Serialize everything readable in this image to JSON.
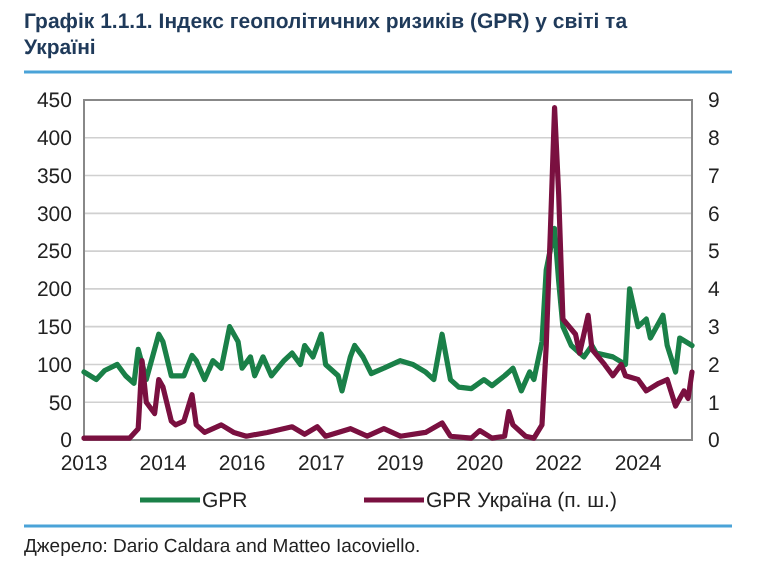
{
  "chart_data": {
    "type": "line",
    "title": "Графік 1.1.1. Індекс геополітичних ризиків (GPR) у світі та Україні",
    "xlim": [
      "2013-01",
      "2025-03"
    ],
    "xticks": [
      {
        "value": "2013-01",
        "label": "2013"
      },
      {
        "value": "2014-08",
        "label": "2014"
      },
      {
        "value": "2016-03",
        "label": "2016"
      },
      {
        "value": "2017-10",
        "label": "2017"
      },
      {
        "value": "2019-05",
        "label": "2019"
      },
      {
        "value": "2020-12",
        "label": "2020"
      },
      {
        "value": "2022-07",
        "label": "2022"
      },
      {
        "value": "2024-02",
        "label": "2024"
      }
    ],
    "ylim": [
      0,
      450
    ],
    "yticks": [
      0,
      50,
      100,
      150,
      200,
      250,
      300,
      350,
      400,
      450
    ],
    "y2lim": [
      0,
      9
    ],
    "y2ticks": [
      0,
      1,
      2,
      3,
      4,
      5,
      6,
      7,
      8,
      9
    ],
    "grid": "y",
    "legend": "bottom",
    "line_style": "solid",
    "series": [
      {
        "name": "GPR",
        "color": "#1a8048",
        "x": [
          "2013-01",
          "2013-04",
          "2013-06",
          "2013-09",
          "2013-11",
          "2014-01",
          "2014-02",
          "2014-04",
          "2014-07",
          "2014-08",
          "2014-10",
          "2015-01",
          "2015-03",
          "2015-04",
          "2015-06",
          "2015-08",
          "2015-10",
          "2015-12",
          "2016-02",
          "2016-03",
          "2016-05",
          "2016-06",
          "2016-08",
          "2016-10",
          "2017-01",
          "2017-03",
          "2017-05",
          "2017-06",
          "2017-08",
          "2017-10",
          "2017-11",
          "2018-02",
          "2018-03",
          "2018-05",
          "2018-06",
          "2018-08",
          "2018-10",
          "2019-01",
          "2019-05",
          "2019-08",
          "2019-11",
          "2020-01",
          "2020-03",
          "2020-05",
          "2020-07",
          "2020-10",
          "2021-01",
          "2021-03",
          "2021-06",
          "2021-08",
          "2021-10",
          "2021-12",
          "2022-01",
          "2022-03",
          "2022-04",
          "2022-06",
          "2022-07",
          "2022-08",
          "2022-10",
          "2023-01",
          "2023-03",
          "2023-04",
          "2023-08",
          "2023-11",
          "2023-12",
          "2024-02",
          "2024-04",
          "2024-05",
          "2024-08",
          "2024-09",
          "2024-11",
          "2024-12",
          "2025-03"
        ],
        "values": [
          90,
          80,
          92,
          100,
          85,
          75,
          120,
          80,
          140,
          130,
          85,
          85,
          112,
          105,
          80,
          105,
          95,
          150,
          130,
          95,
          110,
          85,
          110,
          85,
          105,
          115,
          100,
          125,
          110,
          140,
          100,
          85,
          65,
          110,
          125,
          110,
          88,
          95,
          105,
          100,
          90,
          80,
          140,
          80,
          70,
          68,
          80,
          72,
          85,
          95,
          65,
          90,
          80,
          130,
          225,
          280,
          210,
          150,
          125,
          110,
          125,
          115,
          110,
          100,
          200,
          150,
          160,
          135,
          165,
          125,
          90,
          135,
          125
        ]
      },
      {
        "name": "GPR Україна (п. ш.)",
        "color": "#7a1040",
        "axis": "y2",
        "x": [
          "2013-01",
          "2013-12",
          "2014-02",
          "2014-03",
          "2014-04",
          "2014-06",
          "2014-07",
          "2014-08",
          "2014-10",
          "2014-11",
          "2015-01",
          "2015-03",
          "2015-04",
          "2015-06",
          "2015-10",
          "2016-01",
          "2016-04",
          "2016-09",
          "2017-03",
          "2017-06",
          "2017-09",
          "2017-11",
          "2018-05",
          "2018-09",
          "2019-01",
          "2019-05",
          "2019-11",
          "2020-03",
          "2020-05",
          "2020-10",
          "2020-12",
          "2021-03",
          "2021-06",
          "2021-07",
          "2021-08",
          "2021-11",
          "2022-01",
          "2022-03",
          "2022-04",
          "2022-05",
          "2022-06",
          "2022-07",
          "2022-08",
          "2022-11",
          "2022-12",
          "2023-02",
          "2023-03",
          "2023-06",
          "2023-08",
          "2023-10",
          "2023-11",
          "2024-02",
          "2024-04",
          "2024-07",
          "2024-09",
          "2024-11",
          "2025-01",
          "2025-02",
          "2025-03"
        ],
        "values": [
          0.05,
          0.05,
          0.3,
          2.1,
          1.0,
          0.7,
          1.6,
          1.4,
          0.5,
          0.4,
          0.5,
          1.2,
          0.4,
          0.2,
          0.4,
          0.2,
          0.1,
          0.2,
          0.35,
          0.15,
          0.35,
          0.1,
          0.3,
          0.1,
          0.3,
          0.1,
          0.2,
          0.45,
          0.1,
          0.05,
          0.25,
          0.05,
          0.1,
          0.75,
          0.4,
          0.1,
          0.05,
          0.4,
          2.5,
          5.5,
          8.8,
          6.5,
          3.2,
          2.8,
          2.3,
          3.3,
          2.4,
          2.0,
          1.7,
          2.0,
          1.7,
          1.6,
          1.3,
          1.5,
          1.6,
          0.9,
          1.3,
          1.1,
          1.8
        ]
      }
    ],
    "annotations": [
      "Джерело: Dario Caldara and Matteo Iacoviello."
    ]
  }
}
